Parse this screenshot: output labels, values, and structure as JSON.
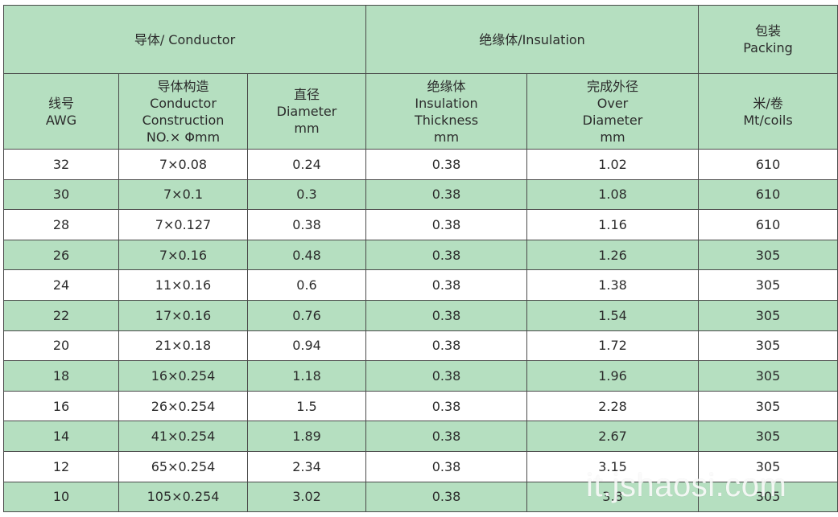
{
  "header": {
    "conductor_group": "导体/ Conductor",
    "insulation_group": "绝缘体/Insulation",
    "packing_group": [
      "包装",
      "Packing"
    ],
    "awg": [
      "线号",
      "AWG"
    ],
    "construction": [
      "导体构造",
      "Conductor",
      "Construction",
      "NO.× Φmm"
    ],
    "diameter": [
      "直径",
      "Diameter",
      "mm"
    ],
    "thickness": [
      "绝缘体",
      "Insulation",
      "Thickness",
      "mm"
    ],
    "over_diameter": [
      "完成外径",
      "Over",
      "Diameter",
      "mm"
    ],
    "packing": [
      "米/卷",
      "Mt/coils"
    ]
  },
  "rows": [
    {
      "awg": "32",
      "construction": "7×0.08",
      "diameter": "0.24",
      "thickness": "0.38",
      "over": "1.02",
      "packing": "610"
    },
    {
      "awg": "30",
      "construction": "7×0.1",
      "diameter": "0.3",
      "thickness": "0.38",
      "over": "1.08",
      "packing": "610"
    },
    {
      "awg": "28",
      "construction": "7×0.127",
      "diameter": "0.38",
      "thickness": "0.38",
      "over": "1.16",
      "packing": "610"
    },
    {
      "awg": "26",
      "construction": "7×0.16",
      "diameter": "0.48",
      "thickness": "0.38",
      "over": "1.26",
      "packing": "305"
    },
    {
      "awg": "24",
      "construction": "11×0.16",
      "diameter": "0.6",
      "thickness": "0.38",
      "over": "1.38",
      "packing": "305"
    },
    {
      "awg": "22",
      "construction": "17×0.16",
      "diameter": "0.76",
      "thickness": "0.38",
      "over": "1.54",
      "packing": "305"
    },
    {
      "awg": "20",
      "construction": "21×0.18",
      "diameter": "0.94",
      "thickness": "0.38",
      "over": "1.72",
      "packing": "305"
    },
    {
      "awg": "18",
      "construction": "16×0.254",
      "diameter": "1.18",
      "thickness": "0.38",
      "over": "1.96",
      "packing": "305"
    },
    {
      "awg": "16",
      "construction": "26×0.254",
      "diameter": "1.5",
      "thickness": "0.38",
      "over": "2.28",
      "packing": "305"
    },
    {
      "awg": "14",
      "construction": "41×0.254",
      "diameter": "1.89",
      "thickness": "0.38",
      "over": "2.67",
      "packing": "305"
    },
    {
      "awg": "12",
      "construction": "65×0.254",
      "diameter": "2.34",
      "thickness": "0.38",
      "over": "3.15",
      "packing": "305"
    },
    {
      "awg": "10",
      "construction": "105×0.254",
      "diameter": "3.02",
      "thickness": "0.38",
      "over": "3.8",
      "packing": "305"
    }
  ],
  "watermark": "it.jshaosi.com",
  "colors": {
    "header_bg": "#b5dfc0",
    "stripe_bg": "#b5dfc0",
    "border": "#4a4a4a",
    "text": "#2b2b2b"
  }
}
